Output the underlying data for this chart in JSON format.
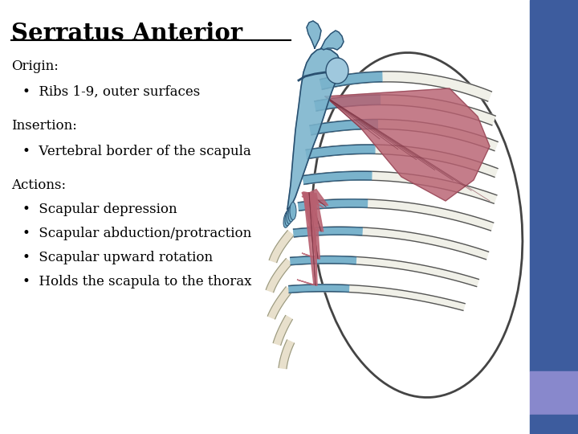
{
  "title": "Serratus Anterior",
  "bg_color": "#f0f0f0",
  "slide_bg": "#ffffff",
  "sidebar_dark": "#3d5c9e",
  "sidebar_light": "#8888cc",
  "text_color": "#000000",
  "title_fontsize": 21,
  "body_fontsize": 12,
  "origin_label": "Origin:",
  "origin_bullet": "Ribs 1-9, outer surfaces",
  "insertion_label": "Insertion:",
  "insertion_bullet": "Vertebral border of the scapula",
  "actions_label": "Actions:",
  "actions_bullets": [
    "Scapular depression",
    "Scapular abduction/protraction",
    "Scapular upward rotation",
    "Holds the scapula to the thorax"
  ],
  "scapula_color": "#7ab3cc",
  "scapula_edge": "#2a5070",
  "rib_bone_color": "#f0f0e8",
  "rib_bone_edge": "#555555",
  "rib_blue_color": "#7ab3cc",
  "rib_blue_edge": "#2a5070",
  "muscle_color": "#b86070",
  "muscle_edge": "#7a3040",
  "costal_color": "#e8e0cc",
  "costal_edge": "#888888"
}
